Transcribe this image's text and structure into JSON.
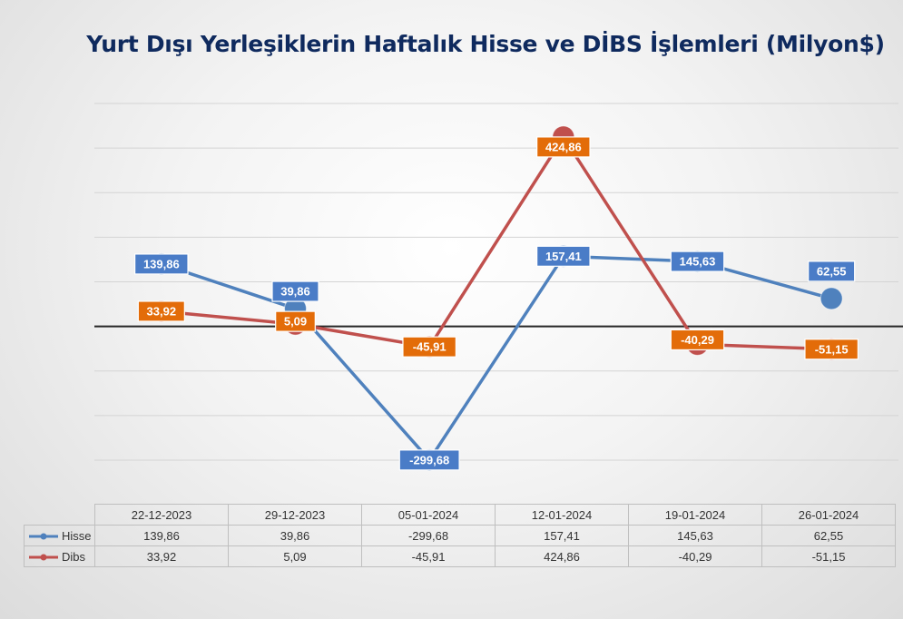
{
  "chart_data": {
    "type": "line",
    "title": "Yurt Dışı Yerleşiklerin Haftalık Hisse ve DİBS İşlemleri (Milyon$)",
    "categories": [
      "22-12-2023",
      "29-12-2023",
      "05-01-2024",
      "12-01-2024",
      "19-01-2024",
      "26-01-2024"
    ],
    "series": [
      {
        "name": "Hisse",
        "values": [
          139.86,
          39.86,
          -299.68,
          157.41,
          145.63,
          62.55
        ],
        "labels": [
          "139,86",
          "39,86",
          "-299,68",
          "157,41",
          "145,63",
          "62,55"
        ],
        "color": "#4f81bd",
        "label_color": "#4a7cc7"
      },
      {
        "name": "Dibs",
        "values": [
          33.92,
          5.09,
          -45.91,
          424.86,
          -40.29,
          -51.15
        ],
        "labels": [
          "33,92",
          "5,09",
          "-45,91",
          "424,86",
          "-40,29",
          "-51,15"
        ],
        "color": "#c0504d",
        "label_color": "#e36c09"
      }
    ],
    "ylim": [
      -300,
      500
    ],
    "grid": true,
    "axis_labels_shown": false,
    "data_table": true
  }
}
